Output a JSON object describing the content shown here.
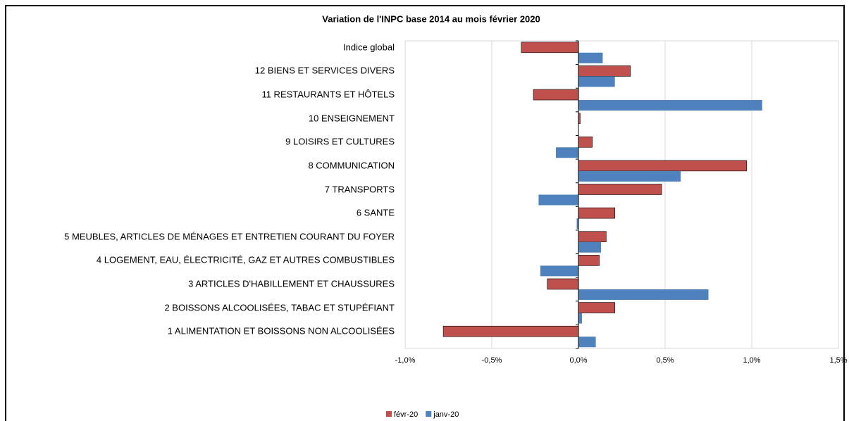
{
  "chart_data": {
    "type": "hbar",
    "title": "Variation de l'INPC base 2014 au mois février 2020",
    "categories": [
      "Indice global",
      "12   BIENS ET SERVICES DIVERS",
      "11   RESTAURANTS ET HÔTELS",
      "10   ENSEIGNEMENT",
      "9   LOISIRS ET CULTURES",
      "8   COMMUNICATION",
      "7   TRANSPORTS",
      "6   SANTE",
      "5   MEUBLES, ARTICLES DE MÉNAGES ET ENTRETIEN COURANT DU FOYER",
      "4   LOGEMENT, EAU, ÉLECTRICITÉ, GAZ ET AUTRES COMBUSTIBLES",
      "3   ARTICLES D'HABILLEMENT ET CHAUSSURES",
      "2   BOISSONS ALCOOLISÉES, TABAC ET STUPÉFIANT",
      "1   ALIMENTATION ET BOISSONS NON ALCOOLISÉES"
    ],
    "series": [
      {
        "name": "févr-20",
        "color": "#c0504d",
        "values": [
          -0.33,
          0.3,
          -0.26,
          0.01,
          0.08,
          0.97,
          0.48,
          0.21,
          0.16,
          0.12,
          -0.18,
          0.21,
          -0.78
        ]
      },
      {
        "name": "janv-20",
        "color": "#4f81bd",
        "values": [
          0.14,
          0.21,
          1.06,
          0,
          -0.13,
          0.59,
          -0.23,
          -0.01,
          0.13,
          -0.22,
          0.75,
          0.02,
          0.1
        ]
      }
    ],
    "xlim": [
      -1.0,
      1.5
    ],
    "xticks": [
      {
        "value": -1.0,
        "label": "-1,0%"
      },
      {
        "value": -0.5,
        "label": "-0,5%"
      },
      {
        "value": 0.0,
        "label": "0,0%"
      },
      {
        "value": 0.5,
        "label": "0,5%"
      },
      {
        "value": 1.0,
        "label": "1,0%"
      },
      {
        "value": 1.5,
        "label": "1,5%"
      }
    ],
    "grid": true,
    "legend": "bottom"
  }
}
